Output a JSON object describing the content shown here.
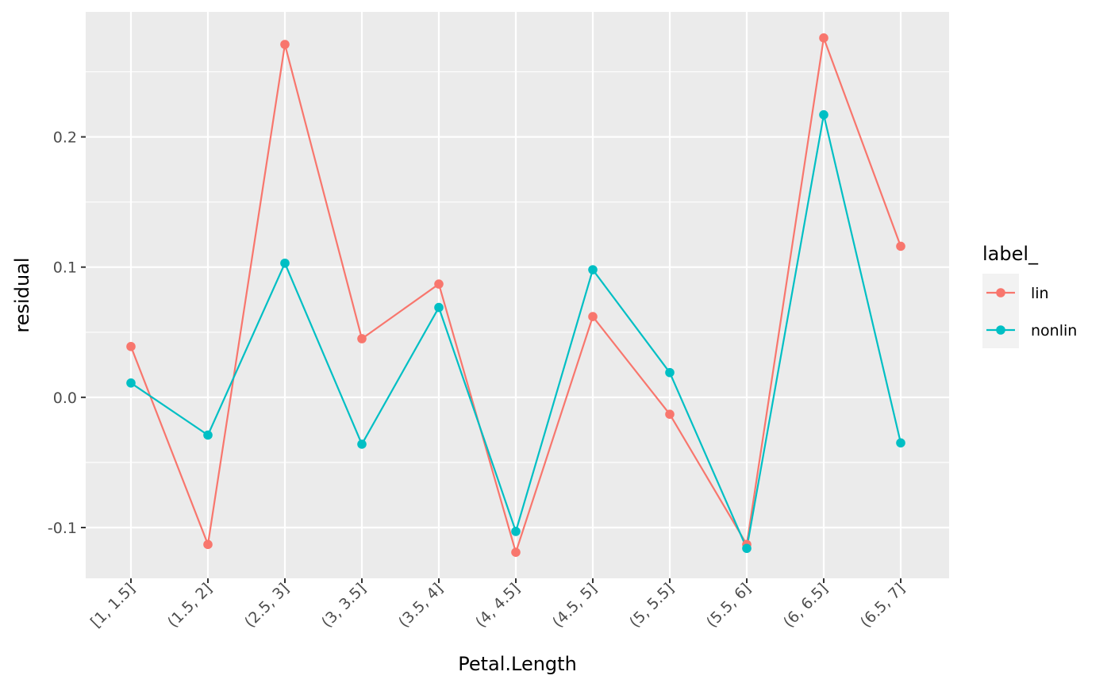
{
  "chart_data": {
    "type": "line",
    "categories": [
      "[1, 1.5]",
      "(1.5, 2]",
      "(2.5, 3]",
      "(3, 3.5]",
      "(3.5, 4]",
      "(4, 4.5]",
      "(4.5, 5]",
      "(5, 5.5]",
      "(5.5, 6]",
      "(6, 6.5]",
      "(6.5, 7]"
    ],
    "series": [
      {
        "name": "lin",
        "color": "#F8766D",
        "values": [
          0.039,
          -0.113,
          0.271,
          0.045,
          0.087,
          -0.119,
          0.062,
          -0.013,
          -0.113,
          0.276,
          0.116
        ]
      },
      {
        "name": "nonlin",
        "color": "#00BFC4",
        "values": [
          0.011,
          -0.029,
          0.103,
          -0.036,
          0.069,
          -0.103,
          0.098,
          0.019,
          -0.116,
          0.217,
          -0.035
        ]
      }
    ],
    "xlabel": "Petal.Length",
    "ylabel": "residual",
    "ylim": [
      -0.139,
      0.296
    ],
    "yticks": [
      -0.1,
      0.0,
      0.1,
      0.2
    ],
    "ytick_labels": [
      "-0.1",
      "0.0",
      "0.1",
      "0.2"
    ],
    "legend": {
      "title": "label_",
      "position": "right"
    },
    "grid": true,
    "panel_background": "#EBEBEB"
  }
}
